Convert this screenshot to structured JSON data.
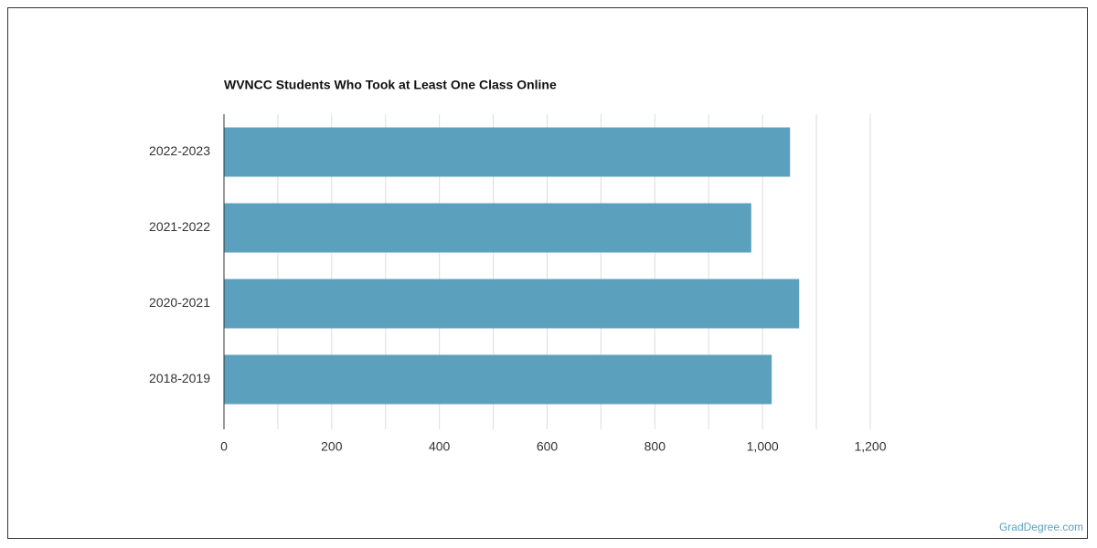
{
  "chart_data": {
    "type": "bar",
    "orientation": "horizontal",
    "title": "WVNCC Students Who Took at Least One Class Online",
    "categories": [
      "2022-2023",
      "2021-2022",
      "2020-2021",
      "2018-2019"
    ],
    "values": [
      1051,
      979,
      1068,
      1017
    ],
    "color": "#5ba1bd",
    "xlim": [
      0,
      1200
    ],
    "xticks": [
      0,
      200,
      400,
      600,
      800,
      {
        "value": 1000,
        "label": "1,000"
      },
      {
        "value": 1200,
        "label": "1,200"
      }
    ],
    "minor_xticks": [
      100,
      300,
      500,
      700,
      900,
      1100
    ],
    "grid": true,
    "source": "GradDegree.com"
  }
}
